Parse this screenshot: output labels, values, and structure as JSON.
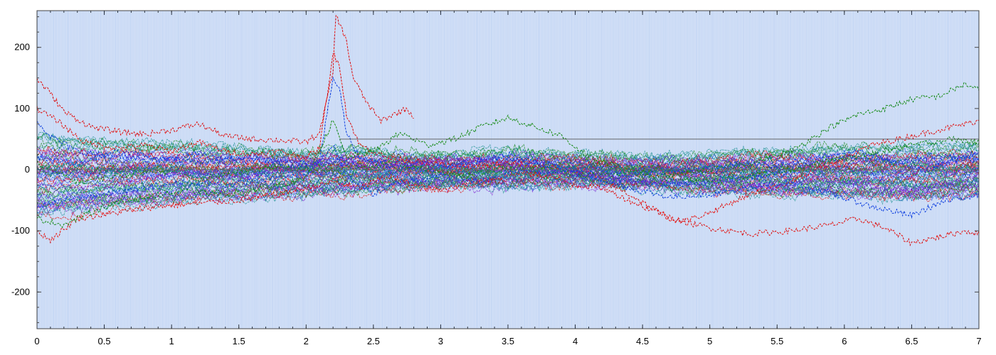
{
  "chart_data": {
    "type": "line",
    "title": "",
    "xlabel": "",
    "ylabel": "",
    "xlim": [
      0,
      7
    ],
    "ylim": [
      -260,
      260
    ],
    "x_ticks": [
      {
        "value": 0,
        "label": "0"
      },
      {
        "value": 0.5,
        "label": "0.5"
      },
      {
        "value": 1,
        "label": "1"
      },
      {
        "value": 1.5,
        "label": "1.5"
      },
      {
        "value": 2,
        "label": "2"
      },
      {
        "value": 2.5,
        "label": "2.5"
      },
      {
        "value": 3,
        "label": "3"
      },
      {
        "value": 3.5,
        "label": "3.5"
      },
      {
        "value": 4,
        "label": "4"
      },
      {
        "value": 4.5,
        "label": "4.5"
      },
      {
        "value": 5,
        "label": "5"
      },
      {
        "value": 5.5,
        "label": "5.5"
      },
      {
        "value": 6,
        "label": "6"
      },
      {
        "value": 6.5,
        "label": "6.5"
      },
      {
        "value": 7,
        "label": "7"
      }
    ],
    "y_ticks": [
      {
        "value": 200,
        "label": "200"
      },
      {
        "value": 100,
        "label": "100"
      },
      {
        "value": 0,
        "label": "0"
      },
      {
        "value": -100,
        "label": "-100"
      },
      {
        "value": -200,
        "label": "-200"
      }
    ],
    "background_stripes": {
      "color": "#a9c4ef",
      "count": 700
    },
    "reference_lines": [
      {
        "y": 50,
        "x_start": 2.25,
        "x_end": 7,
        "color": "#555555"
      },
      {
        "y": 0,
        "x_start": 0,
        "x_end": 7,
        "color": "#666666"
      }
    ],
    "series": [
      {
        "color": "#e01010",
        "values": [
          [
            0,
            148
          ],
          [
            0.1,
            125
          ],
          [
            0.2,
            95
          ],
          [
            0.4,
            70
          ],
          [
            0.6,
            62
          ],
          [
            0.8,
            58
          ],
          [
            1.0,
            65
          ],
          [
            1.2,
            75
          ],
          [
            1.4,
            55
          ],
          [
            1.6,
            50
          ],
          [
            1.8,
            48
          ],
          [
            2.0,
            45
          ],
          [
            2.1,
            60
          ],
          [
            2.2,
            160
          ],
          [
            2.22,
            255
          ],
          [
            2.3,
            210
          ],
          [
            2.35,
            150
          ],
          [
            2.45,
            110
          ],
          [
            2.55,
            80
          ],
          [
            2.65,
            90
          ],
          [
            2.75,
            100
          ],
          [
            2.8,
            85
          ]
        ]
      },
      {
        "color": "#e01010",
        "values": [
          [
            0,
            100
          ],
          [
            0.15,
            80
          ],
          [
            0.35,
            45
          ],
          [
            0.6,
            35
          ],
          [
            0.8,
            40
          ],
          [
            1.0,
            30
          ],
          [
            1.2,
            45
          ],
          [
            1.4,
            30
          ],
          [
            1.6,
            25
          ],
          [
            1.8,
            30
          ],
          [
            2.0,
            20
          ],
          [
            2.1,
            35
          ],
          [
            2.2,
            190
          ],
          [
            2.25,
            170
          ],
          [
            2.3,
            90
          ],
          [
            2.4,
            40
          ],
          [
            2.6,
            20
          ],
          [
            2.9,
            10
          ],
          [
            3.2,
            5
          ],
          [
            3.5,
            10
          ],
          [
            3.8,
            5
          ],
          [
            4.1,
            -5
          ],
          [
            4.4,
            -40
          ],
          [
            4.7,
            -80
          ],
          [
            5.0,
            -95
          ],
          [
            5.3,
            -105
          ],
          [
            5.6,
            -100
          ],
          [
            5.9,
            -90
          ],
          [
            6.1,
            -80
          ],
          [
            6.3,
            -95
          ],
          [
            6.5,
            -120
          ],
          [
            6.7,
            -110
          ],
          [
            6.9,
            -100
          ],
          [
            7.0,
            -105
          ]
        ]
      },
      {
        "color": "#e01010",
        "values": [
          [
            0,
            -100
          ],
          [
            0.1,
            -115
          ],
          [
            0.3,
            -80
          ],
          [
            0.6,
            -70
          ],
          [
            0.9,
            -60
          ],
          [
            1.2,
            -55
          ],
          [
            1.5,
            -50
          ],
          [
            1.8,
            -40
          ],
          [
            2.0,
            -30
          ],
          [
            2.2,
            -20
          ],
          [
            2.4,
            -30
          ],
          [
            2.6,
            -10
          ],
          [
            2.8,
            -25
          ],
          [
            3.0,
            -35
          ],
          [
            3.2,
            -20
          ],
          [
            3.4,
            -15
          ],
          [
            3.6,
            -5
          ],
          [
            3.8,
            -10
          ],
          [
            4.0,
            -25
          ],
          [
            4.2,
            -30
          ],
          [
            4.5,
            -60
          ],
          [
            4.8,
            -85
          ],
          [
            5.0,
            -70
          ],
          [
            5.3,
            -40
          ],
          [
            5.6,
            -20
          ],
          [
            5.9,
            10
          ],
          [
            6.2,
            40
          ],
          [
            6.5,
            55
          ],
          [
            6.8,
            70
          ],
          [
            7.0,
            80
          ]
        ]
      },
      {
        "color": "#1040e0",
        "values": [
          [
            0,
            80
          ],
          [
            0.1,
            55
          ],
          [
            0.3,
            30
          ],
          [
            0.6,
            20
          ],
          [
            0.9,
            15
          ],
          [
            1.2,
            25
          ],
          [
            1.5,
            15
          ],
          [
            1.8,
            10
          ],
          [
            2.0,
            5
          ],
          [
            2.1,
            15
          ],
          [
            2.2,
            150
          ],
          [
            2.25,
            130
          ],
          [
            2.3,
            60
          ],
          [
            2.4,
            20
          ],
          [
            2.6,
            5
          ],
          [
            2.9,
            0
          ],
          [
            3.2,
            10
          ],
          [
            3.5,
            25
          ],
          [
            3.8,
            5
          ],
          [
            4.1,
            -10
          ],
          [
            4.4,
            -30
          ],
          [
            4.7,
            -45
          ],
          [
            5.0,
            -40
          ],
          [
            5.3,
            -30
          ],
          [
            5.6,
            -20
          ],
          [
            5.9,
            -40
          ],
          [
            6.2,
            -60
          ],
          [
            6.5,
            -75
          ],
          [
            6.7,
            -55
          ],
          [
            6.9,
            -45
          ],
          [
            7.0,
            -40
          ]
        ]
      },
      {
        "color": "#1040e0",
        "values": [
          [
            0,
            -60
          ],
          [
            0.2,
            -50
          ],
          [
            0.5,
            -40
          ],
          [
            0.8,
            -30
          ],
          [
            1.1,
            -20
          ],
          [
            1.4,
            -25
          ],
          [
            1.7,
            -15
          ],
          [
            2.0,
            -10
          ],
          [
            2.2,
            40
          ],
          [
            2.3,
            -10
          ],
          [
            2.5,
            -40
          ],
          [
            2.7,
            -20
          ],
          [
            3.0,
            -10
          ],
          [
            3.3,
            -20
          ],
          [
            3.6,
            0
          ],
          [
            3.9,
            -5
          ],
          [
            4.2,
            -15
          ],
          [
            4.5,
            -20
          ],
          [
            4.8,
            -25
          ],
          [
            5.1,
            -15
          ],
          [
            5.4,
            -10
          ],
          [
            5.7,
            10
          ],
          [
            6.0,
            20
          ],
          [
            6.3,
            15
          ],
          [
            6.6,
            0
          ],
          [
            6.9,
            20
          ],
          [
            7.0,
            30
          ]
        ]
      },
      {
        "color": "#1040e0",
        "values": [
          [
            0,
            20
          ],
          [
            0.3,
            10
          ],
          [
            0.6,
            30
          ],
          [
            0.9,
            20
          ],
          [
            1.2,
            10
          ],
          [
            1.5,
            20
          ],
          [
            1.8,
            15
          ],
          [
            2.1,
            10
          ],
          [
            2.3,
            20
          ],
          [
            2.5,
            15
          ],
          [
            2.8,
            10
          ],
          [
            3.1,
            5
          ],
          [
            3.4,
            20
          ],
          [
            3.7,
            10
          ],
          [
            4.0,
            0
          ],
          [
            4.3,
            -10
          ],
          [
            4.6,
            -5
          ],
          [
            4.9,
            0
          ],
          [
            5.2,
            10
          ],
          [
            5.5,
            5
          ],
          [
            5.8,
            20
          ],
          [
            6.1,
            30
          ],
          [
            6.4,
            10
          ],
          [
            6.7,
            25
          ],
          [
            7.0,
            15
          ]
        ]
      },
      {
        "color": "#158a15",
        "values": [
          [
            0,
            -80
          ],
          [
            0.2,
            -90
          ],
          [
            0.5,
            -60
          ],
          [
            0.8,
            -45
          ],
          [
            1.1,
            -35
          ],
          [
            1.4,
            -40
          ],
          [
            1.7,
            -30
          ],
          [
            2.0,
            -15
          ],
          [
            2.2,
            80
          ],
          [
            2.3,
            20
          ],
          [
            2.5,
            30
          ],
          [
            2.7,
            60
          ],
          [
            2.9,
            40
          ],
          [
            3.1,
            50
          ],
          [
            3.3,
            70
          ],
          [
            3.5,
            85
          ],
          [
            3.7,
            70
          ],
          [
            3.9,
            55
          ],
          [
            4.1,
            20
          ],
          [
            4.4,
            0
          ],
          [
            4.7,
            -10
          ],
          [
            5.0,
            0
          ],
          [
            5.3,
            10
          ],
          [
            5.6,
            30
          ],
          [
            5.9,
            70
          ],
          [
            6.1,
            90
          ],
          [
            6.3,
            100
          ],
          [
            6.5,
            115
          ],
          [
            6.7,
            120
          ],
          [
            6.9,
            140
          ],
          [
            7.0,
            130
          ]
        ]
      },
      {
        "color": "#158a15",
        "values": [
          [
            0,
            10
          ],
          [
            0.3,
            -20
          ],
          [
            0.6,
            -10
          ],
          [
            0.9,
            0
          ],
          [
            1.2,
            -15
          ],
          [
            1.5,
            -5
          ],
          [
            1.8,
            5
          ],
          [
            2.1,
            0
          ],
          [
            2.3,
            -5
          ],
          [
            2.6,
            10
          ],
          [
            2.9,
            0
          ],
          [
            3.2,
            -10
          ],
          [
            3.5,
            5
          ],
          [
            3.8,
            0
          ],
          [
            4.1,
            -10
          ],
          [
            4.4,
            -5
          ],
          [
            4.7,
            -15
          ],
          [
            5.0,
            -20
          ],
          [
            5.3,
            -10
          ],
          [
            5.6,
            0
          ],
          [
            5.9,
            15
          ],
          [
            6.2,
            25
          ],
          [
            6.5,
            40
          ],
          [
            6.8,
            50
          ],
          [
            7.0,
            45
          ]
        ]
      },
      {
        "color": "#7a20d0",
        "values": [
          [
            0,
            -20
          ],
          [
            0.3,
            -30
          ],
          [
            0.6,
            -25
          ],
          [
            0.9,
            -10
          ],
          [
            1.2,
            -5
          ],
          [
            1.5,
            -15
          ],
          [
            1.8,
            0
          ],
          [
            2.1,
            10
          ],
          [
            2.3,
            15
          ],
          [
            2.5,
            5
          ],
          [
            2.8,
            10
          ],
          [
            3.1,
            20
          ],
          [
            3.4,
            10
          ],
          [
            3.7,
            0
          ],
          [
            4.0,
            -5
          ],
          [
            4.3,
            -15
          ],
          [
            4.6,
            -20
          ],
          [
            4.9,
            -10
          ],
          [
            5.2,
            -20
          ],
          [
            5.5,
            -30
          ],
          [
            5.8,
            -15
          ],
          [
            6.1,
            -20
          ],
          [
            6.4,
            -40
          ],
          [
            6.7,
            -25
          ],
          [
            7.0,
            -10
          ]
        ]
      },
      {
        "color": "#1a8f8f",
        "values": [
          [
            0,
            0
          ],
          [
            0.3,
            10
          ],
          [
            0.6,
            -5
          ],
          [
            0.9,
            5
          ],
          [
            1.2,
            -10
          ],
          [
            1.5,
            0
          ],
          [
            1.8,
            -5
          ],
          [
            2.1,
            5
          ],
          [
            2.3,
            0
          ],
          [
            2.6,
            -5
          ],
          [
            2.9,
            5
          ],
          [
            3.2,
            0
          ],
          [
            3.5,
            -10
          ],
          [
            3.8,
            0
          ],
          [
            4.1,
            5
          ],
          [
            4.4,
            -5
          ],
          [
            4.7,
            0
          ],
          [
            5.0,
            5
          ],
          [
            5.3,
            -5
          ],
          [
            5.6,
            0
          ],
          [
            5.9,
            -10
          ],
          [
            6.2,
            0
          ],
          [
            6.5,
            10
          ],
          [
            6.8,
            0
          ],
          [
            7.0,
            5
          ]
        ]
      }
    ],
    "band_envelope": {
      "x": [
        0,
        0.5,
        1.0,
        1.5,
        2.0,
        2.3,
        2.5,
        3.0,
        3.5,
        4.0,
        4.5,
        5.0,
        5.5,
        6.0,
        6.5,
        7.0
      ],
      "upper": [
        55,
        45,
        40,
        35,
        30,
        35,
        30,
        25,
        30,
        25,
        20,
        25,
        30,
        35,
        35,
        40
      ],
      "lower": [
        -75,
        -65,
        -55,
        -50,
        -40,
        -40,
        -35,
        -30,
        -30,
        -25,
        -30,
        -35,
        -40,
        -45,
        -50,
        -45
      ],
      "colors": [
        "#e01010",
        "#1040e0",
        "#158a15",
        "#7a20d0",
        "#1a8f8f"
      ]
    }
  }
}
